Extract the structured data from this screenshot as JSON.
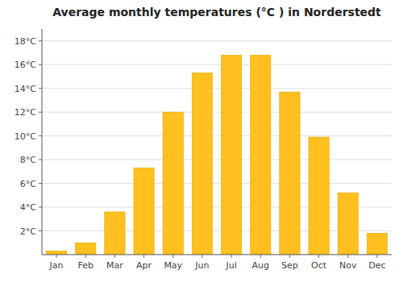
{
  "chart_data": {
    "type": "bar",
    "title": "Average monthly temperatures (°C ) in Norderstedt",
    "categories": [
      "Jan",
      "Feb",
      "Mar",
      "Apr",
      "May",
      "Jun",
      "Jul",
      "Aug",
      "Sep",
      "Oct",
      "Nov",
      "Dec"
    ],
    "values": [
      0.3,
      1.0,
      3.6,
      7.3,
      12.0,
      15.3,
      16.8,
      16.8,
      13.7,
      9.9,
      5.2,
      1.8
    ],
    "color": "#FFC020",
    "ylim": [
      0,
      19
    ],
    "yticks": [
      {
        "value": 2,
        "label": "2°C"
      },
      {
        "value": 4,
        "label": "4°C"
      },
      {
        "value": 6,
        "label": "6°C"
      },
      {
        "value": 8,
        "label": "8°C"
      },
      {
        "value": 10,
        "label": "10°C"
      },
      {
        "value": 12,
        "label": "12°C"
      },
      {
        "value": 14,
        "label": "14°C"
      },
      {
        "value": 16,
        "label": "16°C"
      },
      {
        "value": 18,
        "label": "18°C"
      }
    ],
    "grid": true
  }
}
